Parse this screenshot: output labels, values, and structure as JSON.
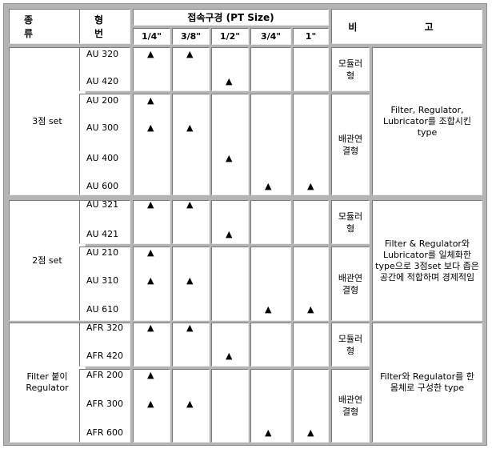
{
  "headers": {
    "kind": "종 류",
    "model": "형 번",
    "port_size": "접속구경 (PT Size)",
    "remarks": "비 고",
    "sizes": [
      "1/4\"",
      "3/8\"",
      "1/2\"",
      "3/4\"",
      "1\""
    ]
  },
  "marker": "▲",
  "groups": [
    {
      "kind": "3점 set",
      "remark": "Filter, Regulator, Lubricator를 조합시킨 type",
      "subgroups": [
        {
          "type_label": "모듈러형",
          "rows": [
            {
              "model": "AU 320",
              "sizes": [
                true,
                true,
                false,
                false,
                false
              ]
            },
            {
              "model": "AU 420",
              "sizes": [
                false,
                false,
                true,
                false,
                false
              ]
            }
          ]
        },
        {
          "type_label": "배관연결형",
          "rows": [
            {
              "model": "AU 200",
              "sizes": [
                true,
                false,
                false,
                false,
                false
              ]
            },
            {
              "model": "AU 300",
              "sizes": [
                true,
                true,
                false,
                false,
                false
              ]
            },
            {
              "model": "AU 400",
              "sizes": [
                false,
                false,
                true,
                false,
                false
              ]
            },
            {
              "model": "AU 600",
              "sizes": [
                false,
                false,
                false,
                true,
                true
              ]
            }
          ]
        }
      ]
    },
    {
      "kind": "2점 set",
      "remark": "Filter & Regulator와 Lubricator를 일체화한 type으로 3점set 보다 좁은 공간에 적합하며 경제적임",
      "subgroups": [
        {
          "type_label": "모듈러형",
          "rows": [
            {
              "model": "AU 321",
              "sizes": [
                true,
                true,
                false,
                false,
                false
              ]
            },
            {
              "model": "AU 421",
              "sizes": [
                false,
                false,
                true,
                false,
                false
              ]
            }
          ]
        },
        {
          "type_label": "배관연결형",
          "rows": [
            {
              "model": "AU 210",
              "sizes": [
                true,
                false,
                false,
                false,
                false
              ]
            },
            {
              "model": "AU 310",
              "sizes": [
                true,
                true,
                false,
                false,
                false
              ]
            },
            {
              "model": "AU 610",
              "sizes": [
                false,
                false,
                false,
                true,
                true
              ]
            }
          ]
        }
      ]
    },
    {
      "kind": "Filter 붙이 Regulator",
      "remark": "Filter와 Regulator를 한 몸체로 구성한 type",
      "subgroups": [
        {
          "type_label": "모듈러형",
          "rows": [
            {
              "model": "AFR 320",
              "sizes": [
                true,
                true,
                false,
                false,
                false
              ]
            },
            {
              "model": "AFR 420",
              "sizes": [
                false,
                false,
                true,
                false,
                false
              ]
            }
          ]
        },
        {
          "type_label": "배관연결형",
          "rows": [
            {
              "model": "AFR 200",
              "sizes": [
                true,
                false,
                false,
                false,
                false
              ]
            },
            {
              "model": "AFR 300",
              "sizes": [
                true,
                true,
                false,
                false,
                false
              ]
            },
            {
              "model": "AFR 600",
              "sizes": [
                false,
                false,
                false,
                true,
                true
              ]
            }
          ]
        }
      ]
    }
  ]
}
